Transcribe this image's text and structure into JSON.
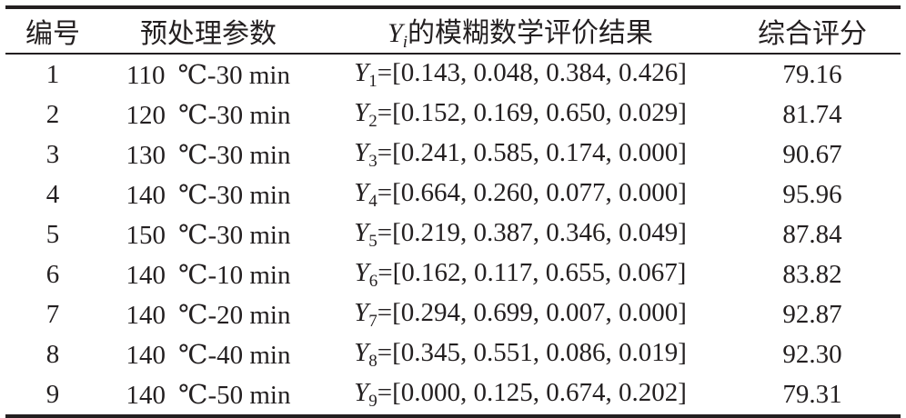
{
  "headers": {
    "col1": "编号",
    "col2": "预处理参数",
    "col3_prefix": "Y",
    "col3_sub": "i",
    "col3_suffix": "的模糊数学评价结果",
    "col4": "综合评分"
  },
  "rows": [
    {
      "id": "1",
      "temp": "110",
      "unit": "℃",
      "time": "-30 min",
      "y": "Y",
      "sub": "1",
      "vector": "=[0.143, 0.048, 0.384, 0.426]",
      "score": "79.16"
    },
    {
      "id": "2",
      "temp": "120",
      "unit": "℃",
      "time": "-30 min",
      "y": "Y",
      "sub": "2",
      "vector": "=[0.152, 0.169, 0.650, 0.029]",
      "score": "81.74"
    },
    {
      "id": "3",
      "temp": "130",
      "unit": "℃",
      "time": "-30 min",
      "y": "Y",
      "sub": "3",
      "vector": "=[0.241, 0.585, 0.174, 0.000]",
      "score": "90.67"
    },
    {
      "id": "4",
      "temp": "140",
      "unit": "℃",
      "time": "-30 min",
      "y": "Y",
      "sub": "4",
      "vector": "=[0.664, 0.260, 0.077, 0.000]",
      "score": "95.96"
    },
    {
      "id": "5",
      "temp": "150",
      "unit": "℃",
      "time": "-30 min",
      "y": "Y",
      "sub": "5",
      "vector": "=[0.219, 0.387, 0.346, 0.049]",
      "score": "87.84"
    },
    {
      "id": "6",
      "temp": "140",
      "unit": "℃",
      "time": "-10 min",
      "y": "Y",
      "sub": "6",
      "vector": "=[0.162, 0.117, 0.655, 0.067]",
      "score": "83.82"
    },
    {
      "id": "7",
      "temp": "140",
      "unit": "℃",
      "time": "-20 min",
      "y": "Y",
      "sub": "7",
      "vector": "=[0.294, 0.699, 0.007, 0.000]",
      "score": "92.87"
    },
    {
      "id": "8",
      "temp": "140",
      "unit": "℃",
      "time": "-40 min",
      "y": "Y",
      "sub": "8",
      "vector": "=[0.345, 0.551, 0.086, 0.019]",
      "score": "92.30"
    },
    {
      "id": "9",
      "temp": "140",
      "unit": "℃",
      "time": "-50 min",
      "y": "Y",
      "sub": "9",
      "vector": "=[0.000, 0.125, 0.674, 0.202]",
      "score": "79.31"
    }
  ]
}
